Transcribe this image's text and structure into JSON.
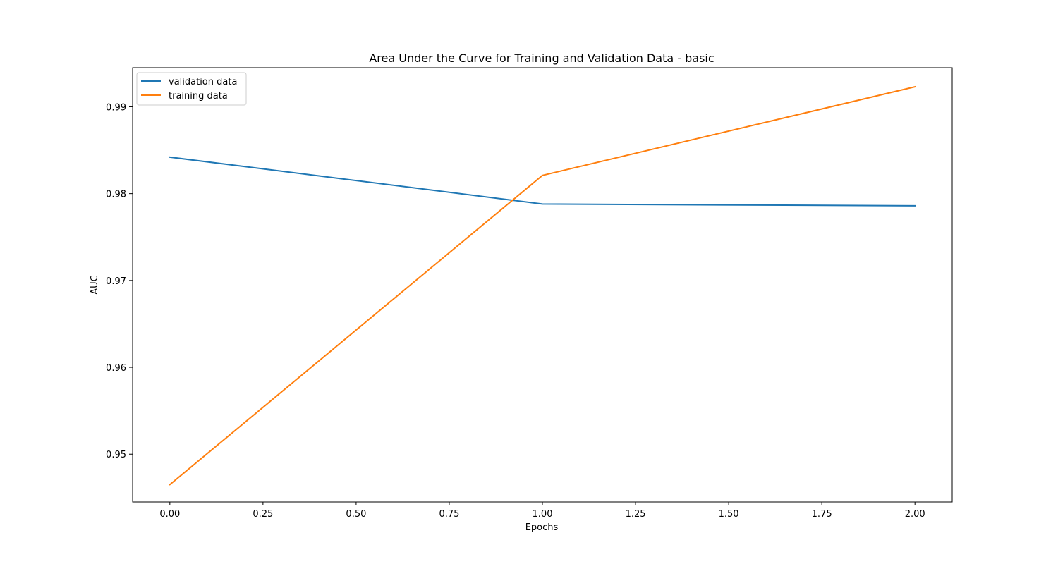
{
  "chart_data": {
    "type": "line",
    "title": "Area Under the Curve for Training and Validation Data - basic",
    "xlabel": "Epochs",
    "ylabel": "AUC",
    "xlim": [
      -0.1,
      2.1
    ],
    "ylim": [
      0.9445,
      0.9945
    ],
    "xticks": [
      0.0,
      0.25,
      0.5,
      0.75,
      1.0,
      1.25,
      1.5,
      1.75,
      2.0
    ],
    "xtick_labels": [
      "0.00",
      "0.25",
      "0.50",
      "0.75",
      "1.00",
      "1.25",
      "1.50",
      "1.75",
      "2.00"
    ],
    "yticks": [
      0.95,
      0.96,
      0.97,
      0.98,
      0.99
    ],
    "ytick_labels": [
      "0.95",
      "0.96",
      "0.97",
      "0.98",
      "0.99"
    ],
    "grid": false,
    "legend_position": "upper-left",
    "series": [
      {
        "name": "validation data",
        "color": "#1f77b4",
        "x": [
          0,
          1,
          2
        ],
        "y": [
          0.9842,
          0.9788,
          0.9786
        ]
      },
      {
        "name": "training data",
        "color": "#ff7f0e",
        "x": [
          0,
          1,
          2
        ],
        "y": [
          0.9465,
          0.9821,
          0.9923
        ]
      }
    ]
  }
}
